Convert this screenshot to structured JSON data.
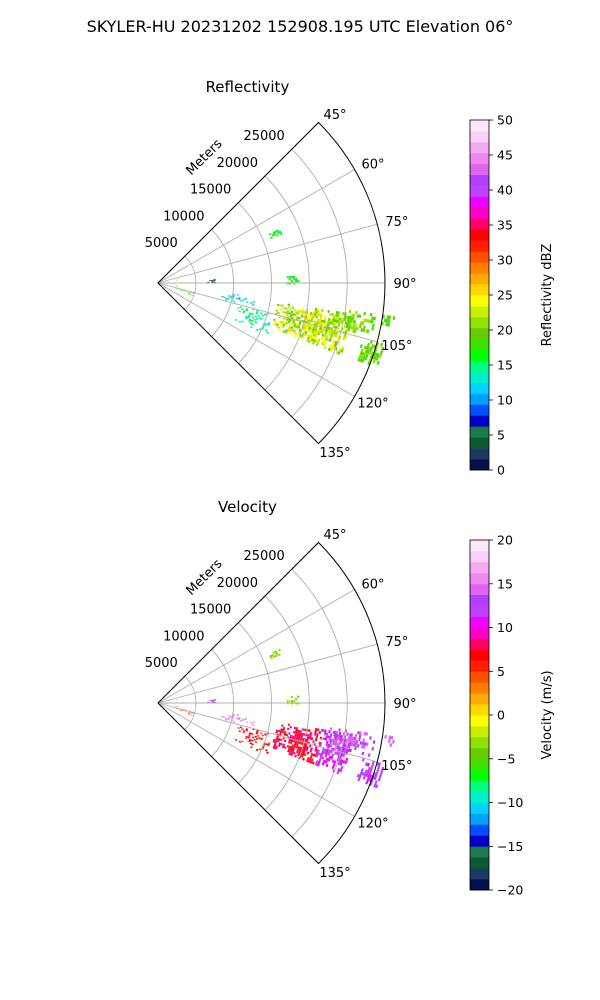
{
  "figure_title": "SKYLER-HU  20231202  152908.195 UTC Elevation 06°",
  "colors": {
    "grid": "#b0b0b0",
    "axis": "#000000",
    "background": "#ffffff"
  },
  "chart_data": [
    {
      "type": "heatmap",
      "subtype": "polar-sector-radar",
      "title": "Reflectivity",
      "radial_label": "Meters",
      "radial_ticks": [
        "5000",
        "10000",
        "15000",
        "20000",
        "25000"
      ],
      "radial_range": [
        0,
        30000
      ],
      "angle_ticks": [
        "45°",
        "60°",
        "75°",
        "90°",
        "105°",
        "120°",
        "135°"
      ],
      "angle_range_deg": [
        45,
        135
      ],
      "grid": true,
      "colorbar": {
        "label": "Reflectivity dBZ",
        "min": 0,
        "max": 50,
        "ticks": [
          "0",
          "5",
          "10",
          "15",
          "20",
          "25",
          "30",
          "35",
          "40",
          "45",
          "50"
        ],
        "colors": [
          "#04104d",
          "#1a3a5f",
          "#0c5a33",
          "#1e7a4a",
          "#0000c8",
          "#0050ff",
          "#00a0ff",
          "#00d2ff",
          "#00f0c8",
          "#00ff80",
          "#00ff00",
          "#40e000",
          "#66cc00",
          "#90e000",
          "#c8f000",
          "#ffff00",
          "#ffd700",
          "#ffaa00",
          "#ff7f00",
          "#ff5000",
          "#ff2000",
          "#ff0000",
          "#ff0066",
          "#ff00c8",
          "#f000ff",
          "#c040ff",
          "#b040ff",
          "#dd66ee",
          "#ee88ee",
          "#f3aaf3",
          "#fad0fa",
          "#ffe8ff"
        ]
      },
      "echoes": [
        {
          "az": [
            86,
            94
          ],
          "r": [
            200,
            1300
          ],
          "val": [
            8,
            14
          ],
          "d": 0.45
        },
        {
          "az": [
            78,
            83
          ],
          "r": [
            2100,
            2500
          ],
          "val": [
            18,
            23
          ],
          "d": 0.5
        },
        {
          "az": [
            95,
            104
          ],
          "r": [
            2100,
            2500
          ],
          "val": [
            18,
            23
          ],
          "d": 0.5
        },
        {
          "az": [
            104,
            110
          ],
          "r": [
            2500,
            5000
          ],
          "val": [
            14,
            20
          ],
          "d": 0.4
        },
        {
          "az": [
            86,
            89
          ],
          "r": [
            6500,
            7500
          ],
          "val": [
            2,
            5
          ],
          "d": 0.5
        },
        {
          "az": [
            98,
            104
          ],
          "r": [
            8000,
            13000
          ],
          "val": [
            10,
            14
          ],
          "d": 0.35
        },
        {
          "az": [
            105,
            115
          ],
          "r": [
            11000,
            16000
          ],
          "val": [
            12,
            16
          ],
          "d": 0.35
        },
        {
          "az": [
            99,
            111
          ],
          "r": [
            16000,
            26000
          ],
          "val": [
            19,
            26
          ],
          "d": 0.85
        },
        {
          "az": [
            98,
            104
          ],
          "r": [
            23000,
            29000
          ],
          "val": [
            17,
            22
          ],
          "d": 0.65
        },
        {
          "az": [
            105,
            111
          ],
          "r": [
            28000,
            31000
          ],
          "val": [
            18,
            21
          ],
          "d": 0.8
        },
        {
          "az": [
            66,
            68
          ],
          "r": [
            16000,
            17500
          ],
          "val": [
            15,
            18
          ],
          "d": 0.6
        },
        {
          "az": [
            87,
            90
          ],
          "r": [
            17000,
            18500
          ],
          "val": [
            15,
            18
          ],
          "d": 0.6
        },
        {
          "az": [
            98,
            100
          ],
          "r": [
            30000,
            31500
          ],
          "val": [
            18,
            20
          ],
          "d": 0.6
        }
      ]
    },
    {
      "type": "heatmap",
      "subtype": "polar-sector-radar",
      "title": "Velocity",
      "radial_label": "Meters",
      "radial_ticks": [
        "5000",
        "10000",
        "15000",
        "20000",
        "25000"
      ],
      "radial_range": [
        0,
        30000
      ],
      "angle_ticks": [
        "45°",
        "60°",
        "75°",
        "90°",
        "105°",
        "120°",
        "135°"
      ],
      "angle_range_deg": [
        45,
        135
      ],
      "grid": true,
      "colorbar": {
        "label": "Velocity (m/s)",
        "min": -20,
        "max": 20,
        "ticks": [
          "−20",
          "−15",
          "−10",
          "−5",
          "0",
          "5",
          "10",
          "15",
          "20"
        ],
        "colors": [
          "#04104d",
          "#1a3a5f",
          "#0c5a33",
          "#1e7a4a",
          "#0000c8",
          "#0050ff",
          "#00a0ff",
          "#00d2ff",
          "#00f0c8",
          "#00ff80",
          "#00ff00",
          "#40e000",
          "#66cc00",
          "#90e000",
          "#c8f000",
          "#ffff00",
          "#ffd700",
          "#ffaa00",
          "#ff7f00",
          "#ff5000",
          "#ff2000",
          "#ff0000",
          "#ff0066",
          "#ff00c8",
          "#f000ff",
          "#c040ff",
          "#b040ff",
          "#dd66ee",
          "#ee88ee",
          "#f3aaf3",
          "#fad0fa",
          "#ffe8ff"
        ]
      },
      "echoes": [
        {
          "az": [
            86,
            94
          ],
          "r": [
            200,
            1300
          ],
          "val": [
            3,
            6
          ],
          "d": 0.45
        },
        {
          "az": [
            78,
            83
          ],
          "r": [
            2100,
            2500
          ],
          "val": [
            0,
            2
          ],
          "d": 0.5
        },
        {
          "az": [
            95,
            104
          ],
          "r": [
            2100,
            2500
          ],
          "val": [
            0,
            2
          ],
          "d": 0.5
        },
        {
          "az": [
            104,
            110
          ],
          "r": [
            2500,
            5000
          ],
          "val": [
            3,
            6
          ],
          "d": 0.4
        },
        {
          "az": [
            86,
            89
          ],
          "r": [
            6500,
            7500
          ],
          "val": [
            12,
            14
          ],
          "d": 0.5
        },
        {
          "az": [
            98,
            104
          ],
          "r": [
            8000,
            13000
          ],
          "val": [
            14,
            17
          ],
          "d": 0.35
        },
        {
          "az": [
            105,
            115
          ],
          "r": [
            11000,
            16000
          ],
          "val": [
            4,
            8
          ],
          "d": 0.35
        },
        {
          "az": [
            99,
            111
          ],
          "r": [
            16000,
            22000
          ],
          "val": [
            5,
            10
          ],
          "d": 0.85
        },
        {
          "az": [
            99,
            111
          ],
          "r": [
            22000,
            26000
          ],
          "val": [
            10,
            13
          ],
          "d": 0.85
        },
        {
          "az": [
            98,
            104
          ],
          "r": [
            23000,
            29000
          ],
          "val": [
            12,
            15
          ],
          "d": 0.65
        },
        {
          "az": [
            105,
            111
          ],
          "r": [
            28000,
            31000
          ],
          "val": [
            11,
            13
          ],
          "d": 0.8
        },
        {
          "az": [
            66,
            68
          ],
          "r": [
            16000,
            17500
          ],
          "val": [
            -4,
            -2
          ],
          "d": 0.6
        },
        {
          "az": [
            87,
            90
          ],
          "r": [
            17000,
            18500
          ],
          "val": [
            -4,
            -2
          ],
          "d": 0.6
        },
        {
          "az": [
            98,
            100
          ],
          "r": [
            30000,
            31500
          ],
          "val": [
            14,
            16
          ],
          "d": 0.6
        }
      ]
    }
  ]
}
